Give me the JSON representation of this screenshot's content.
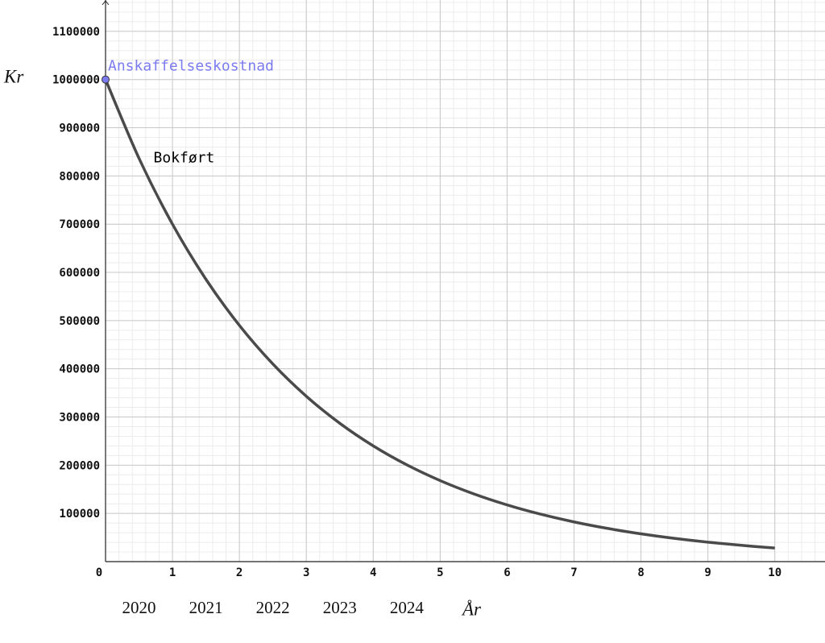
{
  "chart_data": {
    "type": "line",
    "x_label": "År",
    "y_label": "Kr",
    "x": [
      0,
      0.5,
      1,
      1.5,
      2,
      2.5,
      3,
      3.5,
      4,
      4.5,
      5,
      5.5,
      6,
      6.5,
      7,
      7.5,
      8,
      8.5,
      9,
      9.5,
      10
    ],
    "series": [
      {
        "name": "Bokført",
        "color": "#4a4a4a",
        "values": [
          1000000,
          836660,
          700000,
          585662,
          490000,
          409963,
          343000,
          286974,
          240100,
          200882,
          168070,
          140617,
          117649,
          98432,
          82354,
          68902,
          57648,
          48231,
          40354,
          33762,
          28248
        ]
      }
    ],
    "points": [
      {
        "name": "Anskaffelseskostnad",
        "color": "#7b7bf0",
        "x": 0,
        "y": 1000000
      }
    ],
    "year_labels": [
      {
        "text": "2020",
        "x": 0.5
      },
      {
        "text": "2021",
        "x": 1.5
      },
      {
        "text": "2022",
        "x": 2.5
      },
      {
        "text": "2023",
        "x": 3.5
      },
      {
        "text": "2024",
        "x": 4.5
      }
    ],
    "xlim": [
      0,
      10.75
    ],
    "ylim": [
      0,
      1165000
    ],
    "xticks": [
      0,
      1,
      2,
      3,
      4,
      5,
      6,
      7,
      8,
      9,
      10
    ],
    "yticks": [
      100000,
      200000,
      300000,
      400000,
      500000,
      600000,
      700000,
      800000,
      900000,
      1000000,
      1100000
    ],
    "grid": true
  }
}
